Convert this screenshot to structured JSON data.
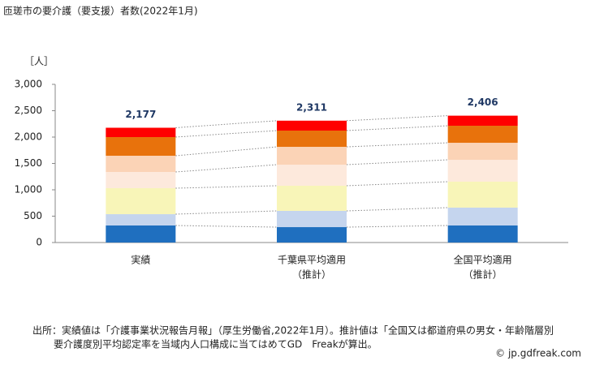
{
  "chart_data": {
    "type": "stacked_bar",
    "title": "匝瑳市の要介護（要支援）者数(2022年1月)",
    "y_label": "［人］",
    "categories": [
      [
        "実績"
      ],
      [
        "千葉県平均適用",
        "（推計）"
      ],
      [
        "全国平均適用",
        "（推計）"
      ]
    ],
    "series": [
      {
        "color": "#1f6fbf",
        "values": [
          323,
          292,
          323
        ]
      },
      {
        "color": "#c5d5ee",
        "values": [
          215,
          308,
          339
        ]
      },
      {
        "color": "#f8f5b8",
        "values": [
          493,
          477,
          492
        ]
      },
      {
        "color": "#fde9dc",
        "values": [
          307,
          400,
          415
        ]
      },
      {
        "color": "#fbd3b6",
        "values": [
          308,
          338,
          323
        ]
      },
      {
        "color": "#e8720c",
        "values": [
          354,
          308,
          323
        ]
      },
      {
        "color": "#ff0000",
        "values": [
          177,
          188,
          191
        ]
      }
    ],
    "totals": {
      "values": [
        2177,
        2311,
        2406
      ],
      "value_labels": [
        "2,177",
        "2,311",
        "2,406"
      ]
    },
    "ylim": [
      0,
      3000
    ],
    "yticks": [
      0,
      500,
      {
        "value": 1000,
        "label": "1,000"
      },
      {
        "value": 1500,
        "label": "1,500"
      },
      {
        "value": 2000,
        "label": "2,000"
      },
      {
        "value": 2500,
        "label": "2,500"
      },
      {
        "value": 3000,
        "label": "3,000"
      }
    ],
    "grid": false,
    "note": [
      "出所：実績値は「介護事業状況報告月報」（厚生労働省,2022年1月）。推計値は「全国又は都道府県の男女・年齢階層別",
      "要介護度別平均認定率を当域内人口構成に当てはめてGD　Freakが算出。"
    ],
    "credit": "© jp.gdfreak.com"
  }
}
